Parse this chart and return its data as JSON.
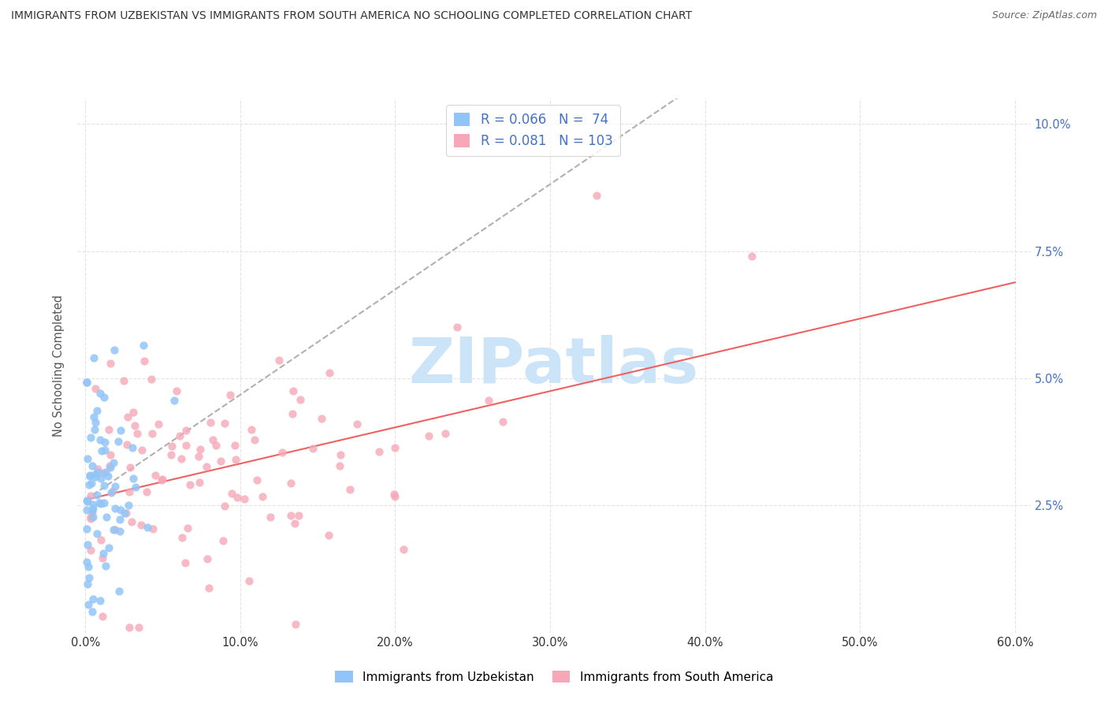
{
  "title": "IMMIGRANTS FROM UZBEKISTAN VS IMMIGRANTS FROM SOUTH AMERICA NO SCHOOLING COMPLETED CORRELATION CHART",
  "source": "Source: ZipAtlas.com",
  "ylabel": "No Schooling Completed",
  "xlim": [
    -0.005,
    0.61
  ],
  "ylim": [
    0.0,
    0.105
  ],
  "xticks": [
    0.0,
    0.1,
    0.2,
    0.3,
    0.4,
    0.5,
    0.6
  ],
  "xticklabels": [
    "0.0%",
    "10.0%",
    "20.0%",
    "30.0%",
    "40.0%",
    "50.0%",
    "60.0%"
  ],
  "yticks": [
    0.0,
    0.025,
    0.05,
    0.075,
    0.1
  ],
  "yticklabels": [
    "",
    "2.5%",
    "5.0%",
    "7.5%",
    "10.0%"
  ],
  "legend_labels": [
    "Immigrants from Uzbekistan",
    "Immigrants from South America"
  ],
  "R_uzbek": 0.066,
  "N_uzbek": 74,
  "R_sa": 0.081,
  "N_sa": 103,
  "color_uzbek": "#92c5f7",
  "color_sa": "#f7a8b8",
  "trendline_uzbek_color": "#b0b0b0",
  "trendline_sa_color": "#f06060",
  "watermark_color": "#cce4f8",
  "background_color": "#ffffff",
  "tick_color": "#4472c4",
  "title_color": "#333333",
  "source_color": "#666666"
}
